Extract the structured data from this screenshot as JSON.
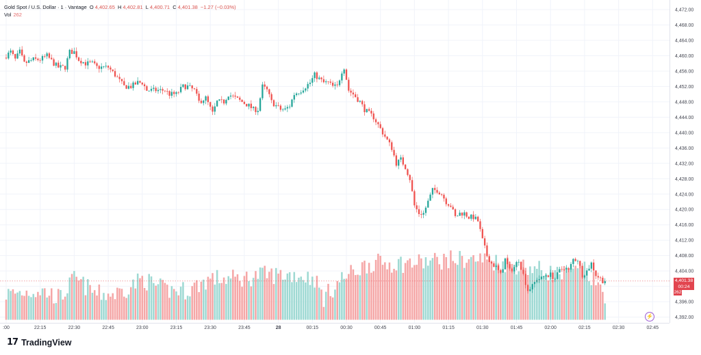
{
  "header": {
    "symbol": "Gold Spot / U.S. Dollar · 1 · Vantage",
    "open_label": "O",
    "open": "4,402.65",
    "high_label": "H",
    "high": "4,402.81",
    "low_label": "L",
    "low": "4,400.71",
    "close_label": "C",
    "close": "4,401.38",
    "change": "−1.27 (−0.03%)",
    "vol_label": "Vol",
    "vol_value": "262"
  },
  "price_tag": {
    "price": "4,401.38",
    "countdown": "00:24"
  },
  "volume_tag": "262",
  "brand": {
    "logo": "17",
    "name": "TradingView"
  },
  "colors": {
    "up": "#26a69a",
    "down": "#ef5350",
    "up_vol": "#9ed9d3",
    "down_vol": "#f5a6a6",
    "grid": "#f0f3fa",
    "axis_text": "#434651"
  },
  "chart_data": {
    "type": "candlestick",
    "x_ticks": [
      ":00",
      "22:15",
      "22:30",
      "22:45",
      "23:00",
      "23:15",
      "23:30",
      "23:45",
      "28",
      "00:15",
      "00:30",
      "00:45",
      "01:00",
      "01:15",
      "01:30",
      "01:45",
      "02:00",
      "02:15",
      "02:30",
      "02:45"
    ],
    "y_ticks": [
      "4,472.00",
      "4,468.00",
      "4,464.00",
      "4,460.00",
      "4,456.00",
      "4,452.00",
      "4,448.00",
      "4,444.00",
      "4,440.00",
      "4,436.00",
      "4,432.00",
      "4,428.00",
      "4,424.00",
      "4,420.00",
      "4,416.00",
      "4,412.00",
      "4,408.00",
      "4,404.00",
      "4,400.00",
      "4,396.00",
      "4,392.00"
    ],
    "y_range": [
      4390.5,
      4474.5
    ],
    "bars_per_tick": 15,
    "close_path": [
      [
        0,
        4460
      ],
      [
        2,
        4461
      ],
      [
        4,
        4459
      ],
      [
        6,
        4461
      ],
      [
        8,
        4458
      ],
      [
        12,
        4459
      ],
      [
        15,
        4459
      ],
      [
        18,
        4460
      ],
      [
        21,
        4458
      ],
      [
        23,
        4457
      ],
      [
        26,
        4457
      ],
      [
        28,
        4461
      ],
      [
        30,
        4461
      ],
      [
        32,
        4459
      ],
      [
        35,
        4458
      ],
      [
        38,
        4458
      ],
      [
        40,
        4457
      ],
      [
        42,
        4457
      ],
      [
        45,
        4457
      ],
      [
        48,
        4455
      ],
      [
        52,
        4452
      ],
      [
        55,
        4452
      ],
      [
        58,
        4453
      ],
      [
        60,
        4453
      ],
      [
        62,
        4451
      ],
      [
        65,
        4451
      ],
      [
        68,
        4451
      ],
      [
        70,
        4451
      ],
      [
        72,
        4450
      ],
      [
        75,
        4450
      ],
      [
        78,
        4452
      ],
      [
        80,
        4452
      ],
      [
        83,
        4451
      ],
      [
        85,
        4448
      ],
      [
        88,
        4449
      ],
      [
        91,
        4445
      ],
      [
        93,
        4448
      ],
      [
        96,
        4448
      ],
      [
        98,
        4450
      ],
      [
        101,
        4449
      ],
      [
        104,
        4448
      ],
      [
        107,
        4447
      ],
      [
        109,
        4446
      ],
      [
        111,
        4446
      ],
      [
        113,
        4452
      ],
      [
        115,
        4451
      ],
      [
        117,
        4448
      ],
      [
        119,
        4447
      ],
      [
        121,
        4446
      ],
      [
        123,
        4446
      ],
      [
        125,
        4447
      ],
      [
        127,
        4450
      ],
      [
        130,
        4451
      ],
      [
        132,
        4452
      ],
      [
        134,
        4453
      ],
      [
        136,
        4455
      ],
      [
        138,
        4454
      ],
      [
        140,
        4453
      ],
      [
        142,
        4453
      ],
      [
        144,
        4452
      ],
      [
        146,
        4452
      ],
      [
        148,
        4456
      ],
      [
        149,
        4457
      ],
      [
        151,
        4451
      ],
      [
        153,
        4450
      ],
      [
        156,
        4448
      ],
      [
        158,
        4446
      ],
      [
        160,
        4445
      ],
      [
        162,
        4444
      ],
      [
        164,
        4442
      ],
      [
        166,
        4440
      ],
      [
        168,
        4438
      ],
      [
        170,
        4436
      ],
      [
        172,
        4432
      ],
      [
        174,
        4433
      ],
      [
        176,
        4431
      ],
      [
        178,
        4428
      ],
      [
        180,
        4421
      ],
      [
        182,
        4419
      ],
      [
        184,
        4419
      ],
      [
        186,
        4422
      ],
      [
        188,
        4425
      ],
      [
        190,
        4425
      ],
      [
        192,
        4424
      ],
      [
        194,
        4422
      ],
      [
        196,
        4421
      ],
      [
        198,
        4418
      ],
      [
        200,
        4419
      ],
      [
        202,
        4419
      ],
      [
        204,
        4418
      ],
      [
        206,
        4418
      ],
      [
        208,
        4417
      ],
      [
        210,
        4412
      ],
      [
        212,
        4408
      ],
      [
        214,
        4406
      ],
      [
        216,
        4405
      ],
      [
        218,
        4403
      ],
      [
        220,
        4407
      ],
      [
        222,
        4404
      ],
      [
        224,
        4405
      ],
      [
        226,
        4407
      ],
      [
        228,
        4403
      ],
      [
        230,
        4399
      ],
      [
        232,
        4400
      ],
      [
        234,
        4402
      ],
      [
        236,
        4402
      ],
      [
        238,
        4403
      ],
      [
        240,
        4403
      ],
      [
        242,
        4402
      ],
      [
        244,
        4404
      ],
      [
        246,
        4405
      ],
      [
        248,
        4404
      ],
      [
        250,
        4407
      ],
      [
        252,
        4407
      ],
      [
        254,
        4403
      ],
      [
        256,
        4404
      ],
      [
        258,
        4406
      ],
      [
        260,
        4403
      ],
      [
        262,
        4402
      ],
      [
        264,
        4401
      ]
    ],
    "volume_level_path": [
      [
        0,
        4398
      ],
      [
        15,
        4399
      ],
      [
        24,
        4397
      ],
      [
        30,
        4402
      ],
      [
        40,
        4398
      ],
      [
        48,
        4398
      ],
      [
        55,
        4400
      ],
      [
        60,
        4402
      ],
      [
        70,
        4399
      ],
      [
        80,
        4399
      ],
      [
        90,
        4402
      ],
      [
        96,
        4402
      ],
      [
        105,
        4402
      ],
      [
        112,
        4403
      ],
      [
        118,
        4403
      ],
      [
        128,
        4403
      ],
      [
        136,
        4402
      ],
      [
        140,
        4397
      ],
      [
        148,
        4402
      ],
      [
        160,
        4406
      ],
      [
        170,
        4406
      ],
      [
        180,
        4406
      ],
      [
        195,
        4407
      ],
      [
        210,
        4407
      ],
      [
        220,
        4406
      ],
      [
        230,
        4405
      ],
      [
        245,
        4403
      ],
      [
        255,
        4404
      ],
      [
        264,
        4398
      ]
    ]
  }
}
